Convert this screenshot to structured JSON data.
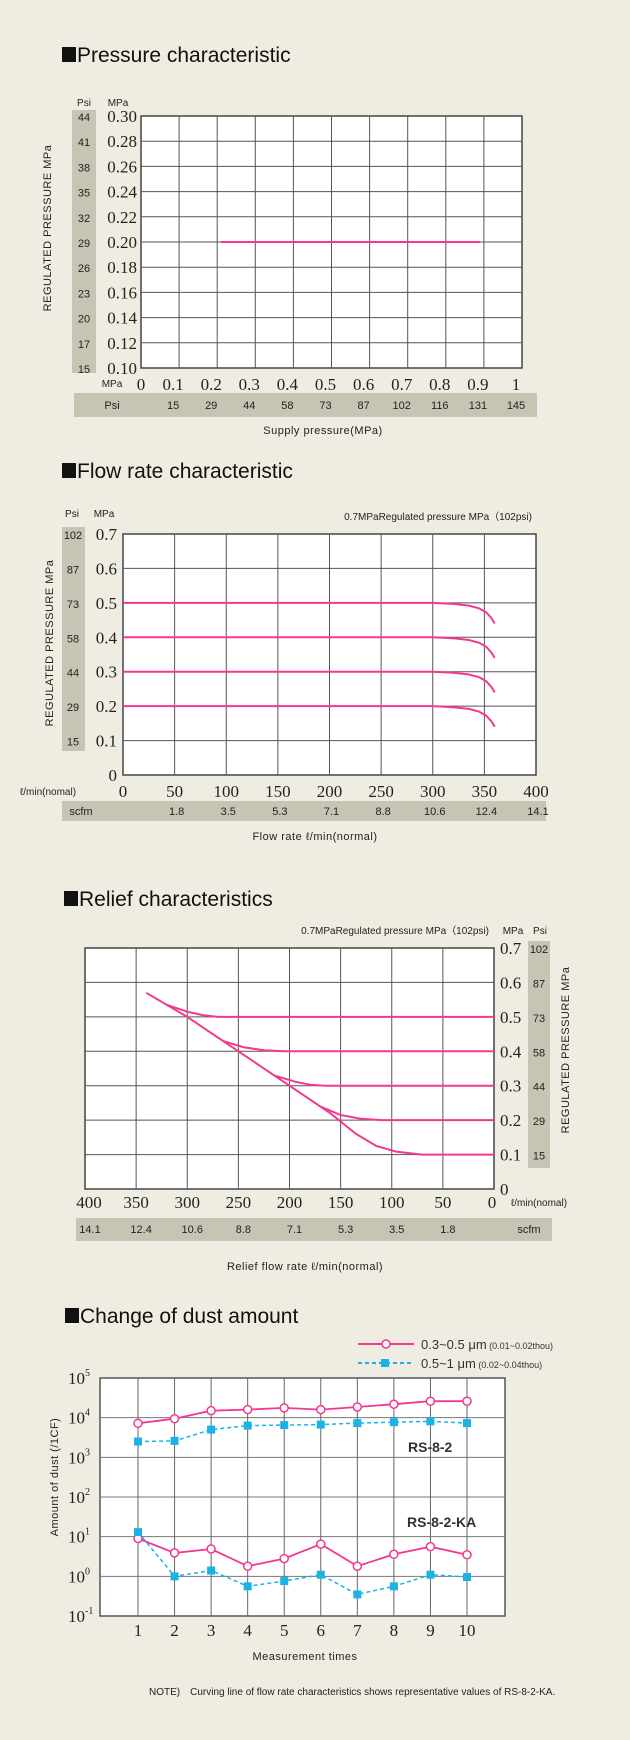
{
  "colors": {
    "background": "#efece1",
    "band": "#c8c4b4",
    "pink": "#f2388f",
    "cyan": "#1ab3e6",
    "grid": "#555555"
  },
  "chart_data": [
    {
      "type": "line",
      "title": "Pressure characteristic",
      "xlabel": "Supply pressure(MPa)",
      "ylabel": "REGULATED PRESSURE MPa",
      "x_unit_label": "MPa",
      "x_secondary_label": "Psi",
      "y_unit_label": "MPa",
      "y_secondary_label": "Psi",
      "xlim": [
        0,
        1
      ],
      "ylim": [
        0.1,
        0.3
      ],
      "grid": true,
      "x_ticks": [
        "0",
        "0.1",
        "0.2",
        "0.3",
        "0.4",
        "0.5",
        "0.6",
        "0.7",
        "0.8",
        "0.9",
        "1"
      ],
      "x_ticks_psi": [
        "",
        "15",
        "29",
        "44",
        "58",
        "73",
        "87",
        "102",
        "116",
        "131",
        "145"
      ],
      "y_ticks": [
        "0.30",
        "0.28",
        "0.26",
        "0.24",
        "0.22",
        "0.20",
        "0.18",
        "0.16",
        "0.14",
        "0.12",
        "0.10"
      ],
      "y_ticks_psi": [
        "44",
        "41",
        "38",
        "35",
        "32",
        "29",
        "26",
        "23",
        "20",
        "17",
        "15"
      ],
      "series": [
        {
          "points": [
            [
              0.21,
              0.2
            ],
            [
              0.89,
              0.2
            ]
          ]
        }
      ]
    },
    {
      "type": "line",
      "title": "Flow rate characteristic",
      "annotation": "0.7MPaRegulated pressure MPa（102psi)",
      "xlabel": "Flow rate ℓ/min(normal)",
      "ylabel": "REGULATED PRESSURE MPa",
      "x_unit_label": "ℓ/min(nomal)",
      "x_secondary_label": "scfm",
      "y_unit_label": "MPa",
      "y_secondary_label": "Psi",
      "xlim": [
        0,
        400
      ],
      "ylim": [
        0,
        0.7
      ],
      "grid": true,
      "x_ticks": [
        "0",
        "50",
        "100",
        "150",
        "200",
        "250",
        "300",
        "350",
        "400"
      ],
      "x_ticks_scfm": [
        "",
        "1.8",
        "3.5",
        "5.3",
        "7.1",
        "8.8",
        "10.6",
        "12.4",
        "14.1"
      ],
      "y_ticks": [
        "0.7",
        "0.6",
        "0.5",
        "0.4",
        "0.3",
        "0.2",
        "0.1",
        "0"
      ],
      "y_ticks_psi": [
        "102",
        "87",
        "73",
        "58",
        "44",
        "29",
        "15",
        ""
      ],
      "series": [
        {
          "points": [
            [
              0,
              0.5
            ],
            [
              300,
              0.5
            ],
            [
              320,
              0.497
            ],
            [
              335,
              0.492
            ],
            [
              345,
              0.484
            ],
            [
              352,
              0.472
            ],
            [
              357,
              0.455
            ],
            [
              360,
              0.44
            ]
          ]
        },
        {
          "points": [
            [
              0,
              0.4
            ],
            [
              300,
              0.4
            ],
            [
              320,
              0.397
            ],
            [
              335,
              0.392
            ],
            [
              345,
              0.384
            ],
            [
              352,
              0.372
            ],
            [
              357,
              0.355
            ],
            [
              360,
              0.34
            ]
          ]
        },
        {
          "points": [
            [
              0,
              0.3
            ],
            [
              300,
              0.3
            ],
            [
              320,
              0.297
            ],
            [
              335,
              0.292
            ],
            [
              345,
              0.284
            ],
            [
              352,
              0.272
            ],
            [
              357,
              0.255
            ],
            [
              360,
              0.24
            ]
          ]
        },
        {
          "points": [
            [
              0,
              0.2
            ],
            [
              300,
              0.2
            ],
            [
              320,
              0.197
            ],
            [
              335,
              0.192
            ],
            [
              345,
              0.184
            ],
            [
              352,
              0.172
            ],
            [
              357,
              0.155
            ],
            [
              360,
              0.14
            ]
          ]
        }
      ]
    },
    {
      "type": "line",
      "title": "Relief characteristics",
      "annotation": "0.7MPaRegulated pressure MPa（102psi)",
      "xlabel": "Relief flow rate ℓ/min(normal)",
      "ylabel": "REGULATED PRESSURE MPa",
      "x_unit_label": "ℓ/min(nomal)",
      "x_secondary_label": "scfm",
      "y_unit_label": "MPa",
      "y_secondary_label": "Psi",
      "xlim": [
        400,
        0
      ],
      "ylim": [
        0,
        0.7
      ],
      "grid": true,
      "x_ticks": [
        "400",
        "350",
        "300",
        "250",
        "200",
        "150",
        "100",
        "50",
        "0"
      ],
      "x_ticks_scfm": [
        "14.1",
        "12.4",
        "10.6",
        "8.8",
        "7.1",
        "5.3",
        "3.5",
        "1.8",
        ""
      ],
      "y_ticks": [
        "0.7",
        "0.6",
        "0.5",
        "0.4",
        "0.3",
        "0.2",
        "0.1",
        "0"
      ],
      "y_ticks_psi": [
        "102",
        "87",
        "73",
        "58",
        "44",
        "29",
        "15",
        ""
      ],
      "series": [
        {
          "points": [
            [
              340,
              0.57
            ],
            [
              300,
              0.5
            ],
            [
              250,
              0.4
            ],
            [
              200,
              0.3
            ],
            [
              160,
              0.22
            ],
            [
              135,
              0.16
            ],
            [
              115,
              0.125
            ],
            [
              95,
              0.108
            ],
            [
              70,
              0.1
            ],
            [
              0,
              0.1
            ]
          ]
        },
        {
          "points": [
            [
              320,
              0.535
            ],
            [
              300,
              0.515
            ],
            [
              285,
              0.505
            ],
            [
              270,
              0.5
            ],
            [
              0,
              0.5
            ]
          ]
        },
        {
          "points": [
            [
              265,
              0.43
            ],
            [
              245,
              0.412
            ],
            [
              225,
              0.403
            ],
            [
              205,
              0.4
            ],
            [
              0,
              0.4
            ]
          ]
        },
        {
          "points": [
            [
              215,
              0.33
            ],
            [
              195,
              0.312
            ],
            [
              180,
              0.303
            ],
            [
              165,
              0.3
            ],
            [
              0,
              0.3
            ]
          ]
        },
        {
          "points": [
            [
              170,
              0.24
            ],
            [
              150,
              0.215
            ],
            [
              130,
              0.204
            ],
            [
              110,
              0.2
            ],
            [
              0,
              0.2
            ]
          ]
        }
      ]
    },
    {
      "type": "line",
      "title": "Change of dust amount",
      "xlabel": "Measurement times",
      "ylabel": "Amount of dust (/1CF)",
      "y_scale": "log",
      "xlim": [
        0,
        11
      ],
      "ylim": [
        0.1,
        100000
      ],
      "grid": true,
      "x_ticks": [
        "1",
        "2",
        "3",
        "4",
        "5",
        "6",
        "7",
        "8",
        "9",
        "10"
      ],
      "y_ticks": [
        {
          "base": "10",
          "exp": "5"
        },
        {
          "base": "10",
          "exp": "4"
        },
        {
          "base": "10",
          "exp": "3"
        },
        {
          "base": "10",
          "exp": "2"
        },
        {
          "base": "10",
          "exp": "1"
        },
        {
          "base": "10",
          "exp": "0"
        },
        {
          "base": "10",
          "exp": "-1"
        }
      ],
      "legend": {
        "position": "top-right",
        "items": [
          {
            "label": "0.3~0.5 μm",
            "sub": "(0.01~0.02thou)",
            "marker": "open-circle",
            "style": "solid"
          },
          {
            "label": "0.5~1 μm",
            "sub": "(0.02~0.04thou)",
            "marker": "filled-square",
            "style": "dashed"
          }
        ]
      },
      "group_labels": [
        "RS-8-2",
        "RS-8-2-KA"
      ],
      "series": [
        {
          "group": "RS-8-2",
          "legend": 0,
          "x": [
            1,
            2,
            3,
            4,
            5,
            6,
            7,
            8,
            9,
            10
          ],
          "values": [
            7200,
            9400,
            15000,
            16000,
            17600,
            16000,
            18600,
            21800,
            26000,
            26000
          ]
        },
        {
          "group": "RS-8-2",
          "legend": 1,
          "x": [
            1,
            2,
            3,
            4,
            5,
            6,
            7,
            8,
            9,
            10
          ],
          "values": [
            2500,
            2600,
            5000,
            6300,
            6500,
            6700,
            7300,
            7700,
            8100,
            7300
          ]
        },
        {
          "group": "RS-8-2-KA",
          "legend": 0,
          "x": [
            1,
            2,
            3,
            4,
            5,
            6,
            7,
            8,
            9,
            10
          ],
          "values": [
            9,
            3.9,
            4.9,
            1.8,
            2.8,
            6.5,
            1.8,
            3.6,
            5.6,
            3.5
          ]
        },
        {
          "group": "RS-8-2-KA",
          "legend": 1,
          "x": [
            1,
            2,
            3,
            4,
            5,
            6,
            7,
            8,
            9,
            10
          ],
          "values": [
            13,
            1.0,
            1.4,
            0.56,
            0.76,
            1.1,
            0.35,
            0.56,
            1.1,
            0.96
          ]
        }
      ]
    }
  ],
  "note": "NOTE)　Curving line of flow rate characteristics shows representative values of RS-8-2-KA."
}
